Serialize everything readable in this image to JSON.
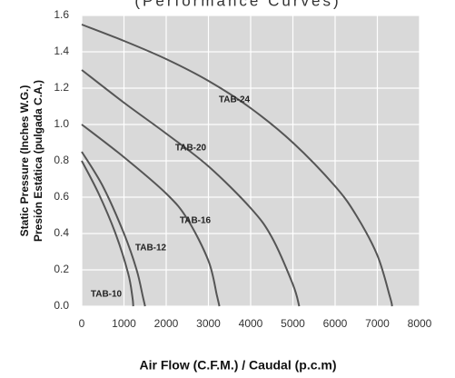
{
  "chart_data": {
    "type": "line",
    "title": "(Performance Curves)",
    "xlabel": "Air Flow (C.F.M.) / Caudal (p.c.m)",
    "ylabel": [
      "Static Pressure (Inches W.G.)",
      "Presión Estática (pulgada C.A.)"
    ],
    "xlim": [
      0,
      8000
    ],
    "xticks": [
      0,
      1000,
      2000,
      3000,
      4000,
      5000,
      6000,
      7000,
      8000
    ],
    "ylim": [
      0,
      1.6
    ],
    "yticks": [
      {
        "value": 0,
        "label": "0.0"
      },
      {
        "value": 0.2,
        "label": "0.2"
      },
      {
        "value": 0.4,
        "label": "0.4"
      },
      {
        "value": 0.6,
        "label": "0.6"
      },
      {
        "value": 0.8,
        "label": "0.8"
      },
      {
        "value": 1.0,
        "label": "1.0"
      },
      {
        "value": 1.2,
        "label": "1.2"
      },
      {
        "value": 1.4,
        "label": "1.4"
      },
      {
        "value": 1.6,
        "label": "1.6"
      }
    ],
    "grid": true,
    "background": "#d9d9d9",
    "series": [
      {
        "name": "TAB-24",
        "color": "#555555",
        "x": [
          0,
          1000,
          2000,
          3000,
          4000,
          5000,
          6000,
          6500,
          7000,
          7300,
          7350
        ],
        "values": [
          1.55,
          1.46,
          1.36,
          1.24,
          1.09,
          0.9,
          0.66,
          0.5,
          0.28,
          0.05,
          0
        ]
      },
      {
        "name": "TAB-20",
        "color": "#555555",
        "x": [
          0,
          1000,
          2000,
          3000,
          4000,
          4500,
          5000,
          5150
        ],
        "values": [
          1.3,
          1.12,
          0.95,
          0.77,
          0.54,
          0.38,
          0.12,
          0
        ]
      },
      {
        "name": "TAB-16",
        "color": "#555555",
        "x": [
          0,
          1000,
          2000,
          2500,
          3000,
          3200,
          3260
        ],
        "values": [
          1.0,
          0.82,
          0.62,
          0.48,
          0.25,
          0.06,
          0
        ]
      },
      {
        "name": "TAB-12",
        "color": "#555555",
        "x": [
          0,
          500,
          1000,
          1300,
          1450,
          1500
        ],
        "values": [
          0.85,
          0.66,
          0.4,
          0.2,
          0.05,
          0
        ]
      },
      {
        "name": "TAB-10",
        "color": "#555555",
        "x": [
          0,
          400,
          800,
          1100,
          1200,
          1220
        ],
        "values": [
          0.8,
          0.62,
          0.4,
          0.18,
          0.05,
          0
        ]
      }
    ]
  }
}
